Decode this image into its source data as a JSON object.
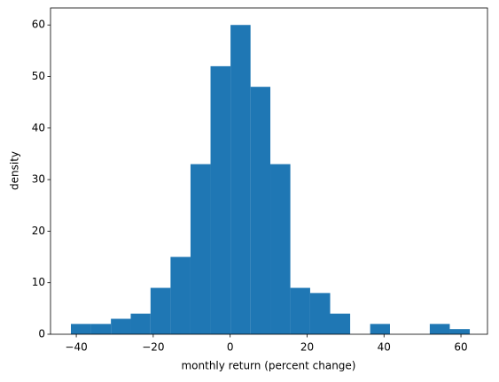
{
  "chart_data": {
    "type": "histogram",
    "xlabel": "monthly return (percent change)",
    "ylabel": "density",
    "bins": [
      -41.4,
      -36.2,
      -31.0,
      -25.85,
      -20.7,
      -15.5,
      -10.3,
      -5.1,
      0.1,
      5.3,
      10.45,
      15.65,
      20.8,
      26.0,
      31.2,
      36.4,
      41.55,
      46.75,
      51.9,
      57.1,
      62.3
    ],
    "values": [
      2,
      2,
      3,
      4,
      9,
      15,
      33,
      52,
      60,
      48,
      33,
      9,
      8,
      4,
      0,
      2,
      0,
      0,
      2,
      1
    ],
    "color": "#1f77b4",
    "xlim": [
      -46.7,
      66.9
    ],
    "ylim": [
      0,
      63.3
    ],
    "xticks": [
      {
        "value": -40,
        "label": "−40"
      },
      {
        "value": -20,
        "label": "−20"
      },
      0,
      20,
      40,
      60
    ],
    "yticks": [
      0,
      10,
      20,
      30,
      40,
      50,
      60
    ]
  }
}
